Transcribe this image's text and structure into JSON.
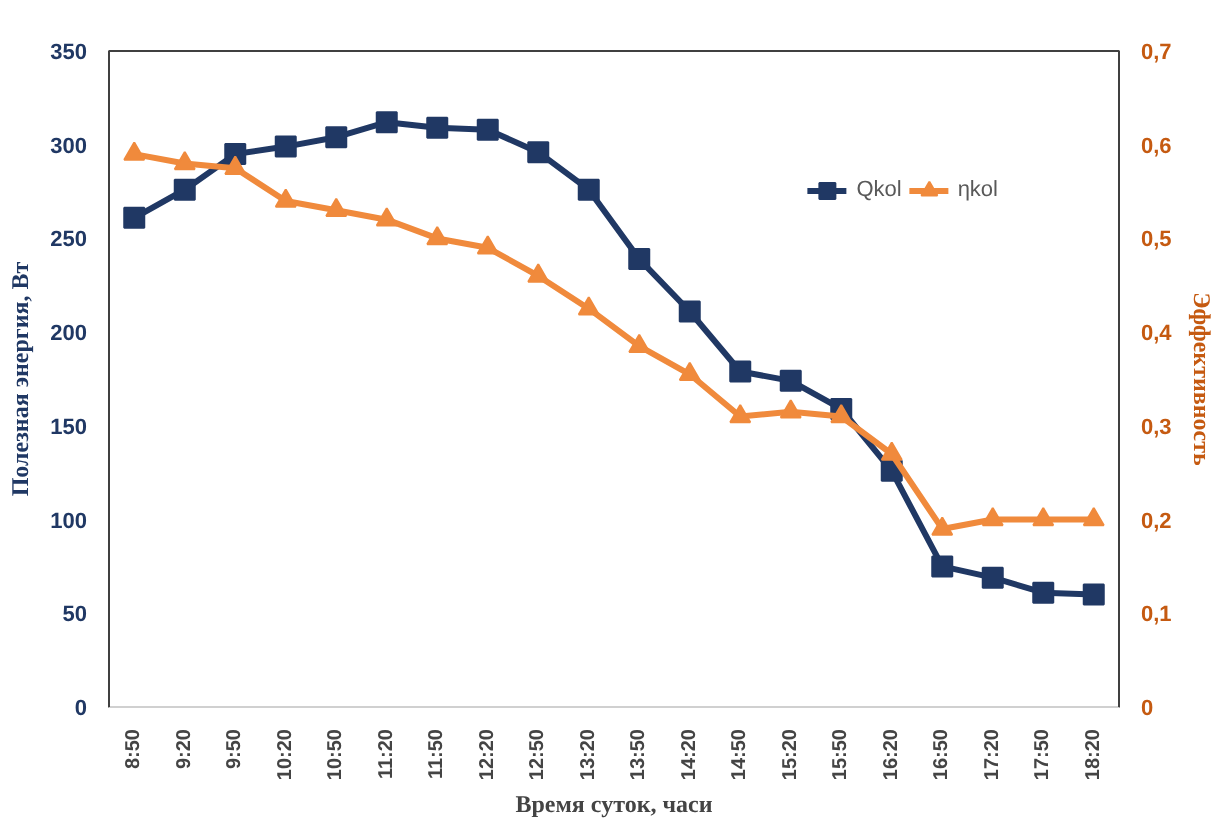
{
  "chart_data": {
    "type": "line",
    "xlabel": "Время суток, часи",
    "ylabel": "Полезная энергия, Вт",
    "y2label": "Эффективность",
    "categories": [
      "8:50",
      "9:20",
      "9:50",
      "10:20",
      "10:50",
      "11:20",
      "11:50",
      "12:20",
      "12:50",
      "13:20",
      "13:50",
      "14:20",
      "14:50",
      "15:20",
      "15:50",
      "16:20",
      "16:50",
      "17:20",
      "17:50",
      "18:20"
    ],
    "series": [
      {
        "name": "Qkol",
        "color": "#203864",
        "marker": "square",
        "values": [
          261,
          276,
          295,
          299,
          304,
          312,
          309,
          308,
          296,
          276,
          239,
          211,
          179,
          174,
          159,
          126,
          75,
          69,
          61,
          60
        ]
      },
      {
        "name": "ηkol",
        "color": "#f08a3c",
        "marker": "triangle",
        "axis": "y2",
        "values": [
          0.59,
          0.58,
          0.575,
          0.54,
          0.53,
          0.52,
          0.5,
          0.49,
          0.46,
          0.425,
          0.385,
          0.355,
          0.31,
          0.315,
          0.31,
          0.27,
          0.19,
          0.2,
          0.2,
          0.2
        ]
      }
    ],
    "ylim": [
      0,
      350
    ],
    "yticks": [
      0,
      50,
      100,
      150,
      200,
      250,
      300,
      350
    ],
    "y2lim": [
      0,
      0.7
    ],
    "y2ticks": [
      {
        "value": 0,
        "label": "0"
      },
      {
        "value": 0.1,
        "label": "0,1"
      },
      {
        "value": 0.2,
        "label": "0,2"
      },
      {
        "value": 0.3,
        "label": "0,3"
      },
      {
        "value": 0.4,
        "label": "0,4"
      },
      {
        "value": 0.5,
        "label": "0,5"
      },
      {
        "value": 0.6,
        "label": "0,6"
      },
      {
        "value": 0.7,
        "label": "0,7"
      }
    ],
    "grid": false,
    "legend": "top right",
    "line_style": "solid"
  }
}
